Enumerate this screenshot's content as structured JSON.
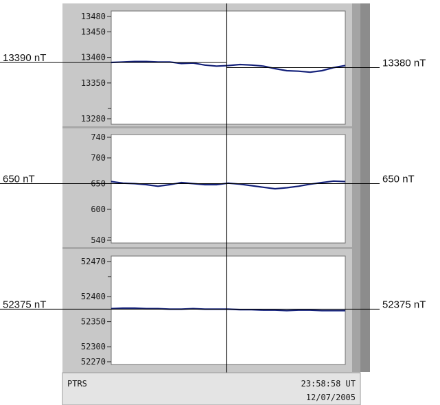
{
  "colors": {
    "frame": "#c8c8c8",
    "frame_dark": "#8c8c8c",
    "plot_bg": "#ffffff",
    "trace": "#1a2a8c",
    "guide": "#000000"
  },
  "status_bar": {
    "station": "PTRS",
    "time": "23:58:58 UT",
    "date": "12/07/2005"
  },
  "chart_data": [
    {
      "type": "line",
      "ylim": [
        13280,
        13480
      ],
      "yticks": [
        13280,
        13350,
        13400,
        13450,
        13480
      ],
      "ytick_labels": [
        "13280",
        "13350",
        "13400",
        "13450",
        "13480"
      ],
      "minor_ticks": [
        13300
      ],
      "x": [
        0,
        0.05,
        0.1,
        0.15,
        0.2,
        0.25,
        0.3,
        0.35,
        0.4,
        0.45,
        0.5,
        0.55,
        0.6,
        0.65,
        0.7,
        0.75,
        0.8,
        0.85,
        0.9,
        0.95,
        1.0
      ],
      "y": [
        13390,
        13391,
        13392,
        13392,
        13391,
        13391,
        13388,
        13389,
        13385,
        13383,
        13384,
        13386,
        13385,
        13383,
        13378,
        13374,
        13373,
        13371,
        13374,
        13380,
        13384
      ],
      "left_annotation": "13390 nT",
      "left_ref": 13390,
      "right_annotation": "13380 nT",
      "right_ref": 13380
    },
    {
      "type": "line",
      "ylim": [
        540,
        740
      ],
      "yticks": [
        540,
        600,
        650,
        700,
        740
      ],
      "ytick_labels": [
        "540",
        "600",
        "650",
        "700",
        "740"
      ],
      "minor_ticks": [
        545
      ],
      "x": [
        0,
        0.05,
        0.1,
        0.15,
        0.2,
        0.25,
        0.3,
        0.35,
        0.4,
        0.45,
        0.5,
        0.55,
        0.6,
        0.65,
        0.7,
        0.75,
        0.8,
        0.85,
        0.9,
        0.95,
        1.0
      ],
      "y": [
        654,
        651,
        650,
        648,
        645,
        648,
        652,
        650,
        648,
        648,
        651,
        649,
        646,
        643,
        640,
        642,
        645,
        649,
        652,
        655,
        654
      ],
      "left_annotation": "650 nT",
      "left_ref": 650,
      "right_annotation": "650 nT",
      "right_ref": 650
    },
    {
      "type": "line",
      "ylim": [
        52270,
        52470
      ],
      "yticks": [
        52270,
        52300,
        52350,
        52400,
        52470
      ],
      "ytick_labels": [
        "52270",
        "52300",
        "52350",
        "52400",
        "52470"
      ],
      "minor_ticks": [
        52440
      ],
      "x": [
        0,
        0.05,
        0.1,
        0.15,
        0.2,
        0.25,
        0.3,
        0.35,
        0.4,
        0.45,
        0.5,
        0.55,
        0.6,
        0.65,
        0.7,
        0.75,
        0.8,
        0.85,
        0.9,
        0.95,
        1.0
      ],
      "y": [
        52376,
        52377,
        52377,
        52376,
        52376,
        52375,
        52375,
        52376,
        52375,
        52375,
        52375,
        52374,
        52374,
        52373,
        52373,
        52372,
        52373,
        52373,
        52372,
        52372,
        52372
      ],
      "left_annotation": "52375 nT",
      "left_ref": 52375,
      "right_annotation": "52375 nT",
      "right_ref": 52375
    }
  ]
}
